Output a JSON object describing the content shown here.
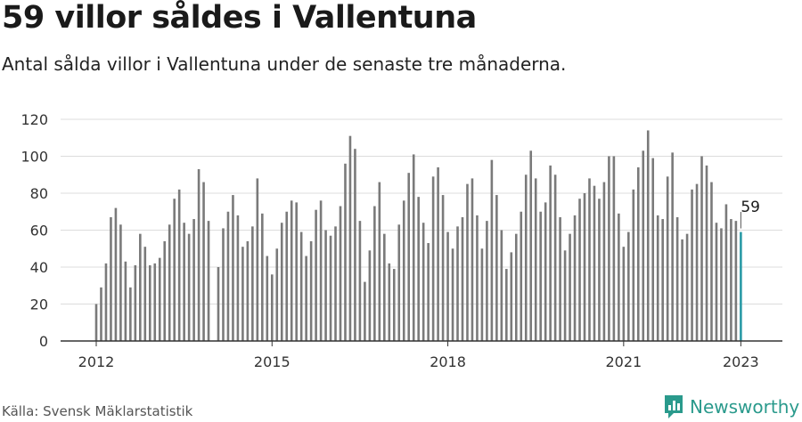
{
  "title": "59 villor såldes i Vallentuna",
  "subtitle": "Antal sålda villor i Vallentuna under de senaste tre månaderna.",
  "source": "Källa: Svensk Mäklarstatistik",
  "brand": {
    "name": "Newsworthy",
    "icon": "newsworthy-logo-icon"
  },
  "colors": {
    "bar": "#7a7a7a",
    "highlight": "#2a9aa6",
    "grid": "#dcdcdc",
    "axis": "#333333",
    "brand": "#2a9a8c"
  },
  "chart_data": {
    "type": "bar",
    "title": "",
    "xlabel": "",
    "ylabel": "",
    "ylim": [
      0,
      120
    ],
    "yticks": [
      0,
      20,
      40,
      60,
      80,
      100,
      120
    ],
    "xticks": [
      {
        "label": "2012",
        "index": 0
      },
      {
        "label": "2015",
        "index": 36
      },
      {
        "label": "2018",
        "index": 72
      },
      {
        "label": "2021",
        "index": 108
      },
      {
        "label": "2023",
        "index": 132
      }
    ],
    "grid": true,
    "highlight": {
      "index": 132,
      "value": 59,
      "label": "59"
    },
    "values": [
      20,
      29,
      42,
      67,
      72,
      63,
      43,
      29,
      41,
      58,
      51,
      41,
      42,
      45,
      54,
      63,
      77,
      82,
      64,
      58,
      66,
      93,
      86,
      65,
      null,
      40,
      61,
      70,
      79,
      68,
      51,
      54,
      62,
      88,
      69,
      46,
      36,
      50,
      64,
      70,
      76,
      75,
      59,
      46,
      54,
      71,
      76,
      60,
      57,
      62,
      73,
      96,
      111,
      104,
      65,
      32,
      49,
      73,
      86,
      58,
      42,
      39,
      63,
      76,
      91,
      101,
      78,
      64,
      53,
      89,
      94,
      79,
      59,
      50,
      62,
      67,
      85,
      88,
      68,
      50,
      65,
      98,
      79,
      60,
      39,
      48,
      58,
      70,
      90,
      103,
      88,
      70,
      75,
      95,
      90,
      67,
      49,
      58,
      68,
      77,
      80,
      88,
      84,
      77,
      86,
      100,
      100,
      69,
      51,
      59,
      82,
      94,
      103,
      114,
      99,
      68,
      66,
      89,
      102,
      67,
      55,
      58,
      82,
      85,
      100,
      95,
      86,
      64,
      61,
      74,
      66,
      65,
      59
    ]
  }
}
